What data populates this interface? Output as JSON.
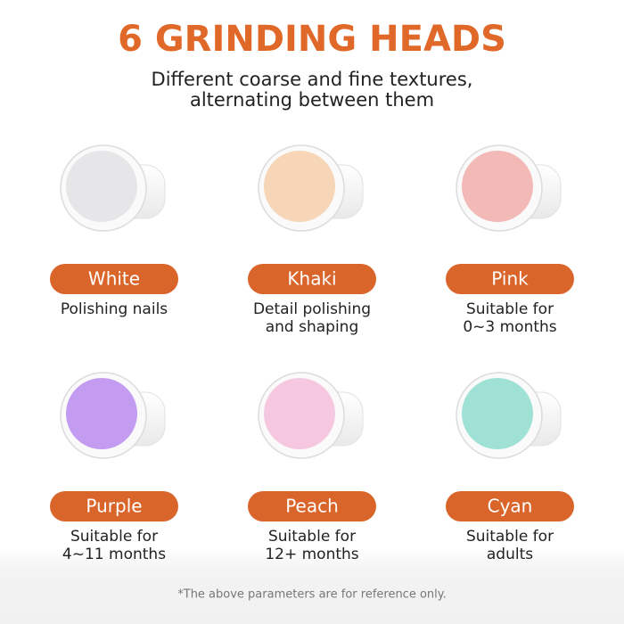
{
  "header": {
    "title": "6 GRINDING HEADS",
    "subtitle": [
      "Different coarse and fine textures,",
      "alternating between them"
    ]
  },
  "items": [
    {
      "label": "White",
      "description": [
        "Polishing nails"
      ]
    },
    {
      "label": "Khaki",
      "description": [
        "Detail polishing",
        "and shaping"
      ]
    },
    {
      "label": "Pink",
      "description": [
        "Suitable for",
        "0~3 months"
      ]
    },
    {
      "label": "Purple",
      "description": [
        "Suitable for",
        "4~11 months"
      ]
    },
    {
      "label": "Peach",
      "description": [
        "Suitable for",
        "12+ months"
      ]
    },
    {
      "label": "Cyan",
      "description": [
        "Suitable for",
        "adults"
      ]
    }
  ],
  "footnote": "*The above parameters are for reference only."
}
